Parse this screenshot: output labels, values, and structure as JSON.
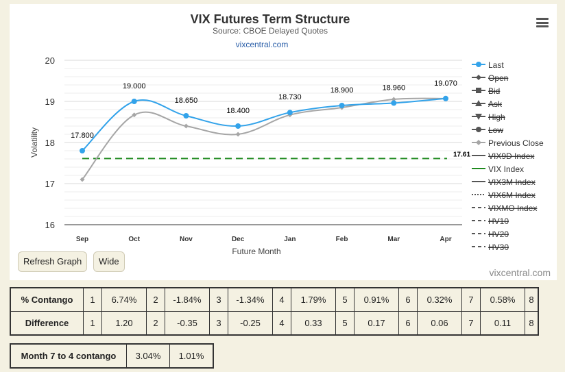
{
  "chart_data": {
    "type": "line",
    "title": "VIX Futures Term Structure",
    "subtitle": "Source: CBOE Delayed Quotes",
    "source_link": "vixcentral.com",
    "xlabel": "Future Month",
    "ylabel": "Volatility",
    "categories": [
      "Sep",
      "Oct",
      "Nov",
      "Dec",
      "Jan",
      "Feb",
      "Mar",
      "Apr"
    ],
    "ylim": [
      16,
      20
    ],
    "yticks": [
      "16",
      "17",
      "18",
      "19",
      "20"
    ],
    "grid": true,
    "legend_position": "right",
    "series": [
      {
        "name": "Last",
        "color": "#33a3ea",
        "values": [
          17.8,
          19.0,
          18.65,
          18.4,
          18.73,
          18.9,
          18.96,
          19.07
        ],
        "labels": [
          "17.800",
          "19.000",
          "18.650",
          "18.400",
          "18.730",
          "18.900",
          "18.960",
          "19.070"
        ]
      },
      {
        "name": "Previous Close",
        "color": "#a6a6a6",
        "values": [
          17.1,
          18.67,
          18.4,
          18.2,
          18.67,
          18.85,
          19.05,
          19.07
        ]
      },
      {
        "name": "VIX Index",
        "color": "#1f8a1f",
        "constant": 17.61,
        "label": "17.61"
      }
    ],
    "legend": [
      {
        "label": "Last",
        "marker": "circle",
        "color": "#33a3ea",
        "disabled": false
      },
      {
        "label": "Open",
        "marker": "diamond",
        "color": "#555555",
        "disabled": true
      },
      {
        "label": "Bid",
        "marker": "square",
        "color": "#555555",
        "disabled": true
      },
      {
        "label": "Ask",
        "marker": "triangle",
        "color": "#555555",
        "disabled": true
      },
      {
        "label": "High",
        "marker": "triangle-down",
        "color": "#555555",
        "disabled": true
      },
      {
        "label": "Low",
        "marker": "circle",
        "color": "#555555",
        "disabled": true
      },
      {
        "label": "Previous Close",
        "marker": "diamond",
        "color": "#a6a6a6",
        "disabled": false
      },
      {
        "label": "VIX9D Index",
        "marker": "line",
        "color": "#555555",
        "disabled": true
      },
      {
        "label": "VIX Index",
        "marker": "line",
        "color": "#1f8a1f",
        "disabled": false
      },
      {
        "label": "VIX3M Index",
        "marker": "line",
        "color": "#555555",
        "disabled": true
      },
      {
        "label": "VIX6M Index",
        "marker": "dotted",
        "color": "#555555",
        "disabled": true
      },
      {
        "label": "VIXMO Index",
        "marker": "dash",
        "color": "#555555",
        "disabled": true
      },
      {
        "label": "HV10",
        "marker": "dash",
        "color": "#555555",
        "disabled": true
      },
      {
        "label": "HV20",
        "marker": "dash",
        "color": "#555555",
        "disabled": true
      },
      {
        "label": "HV30",
        "marker": "dash",
        "color": "#555555",
        "disabled": true
      }
    ]
  },
  "controls": {
    "refresh_label": "Refresh Graph",
    "wide_label": "Wide",
    "watermark": "vixcentral.com"
  },
  "contango_table": {
    "rows": [
      {
        "label": "% Contango",
        "cells": [
          {
            "n": "1",
            "v": "6.74%"
          },
          {
            "n": "2",
            "v": "-1.84%"
          },
          {
            "n": "3",
            "v": "-1.34%"
          },
          {
            "n": "4",
            "v": "1.79%"
          },
          {
            "n": "5",
            "v": "0.91%"
          },
          {
            "n": "6",
            "v": "0.32%"
          },
          {
            "n": "7",
            "v": "0.58%"
          }
        ],
        "last": "8"
      },
      {
        "label": "Difference",
        "cells": [
          {
            "n": "1",
            "v": "1.20"
          },
          {
            "n": "2",
            "v": "-0.35"
          },
          {
            "n": "3",
            "v": "-0.25"
          },
          {
            "n": "4",
            "v": "0.33"
          },
          {
            "n": "5",
            "v": "0.17"
          },
          {
            "n": "6",
            "v": "0.06"
          },
          {
            "n": "7",
            "v": "0.11"
          }
        ],
        "last": "8"
      }
    ]
  },
  "month_table": {
    "label": "Month 7 to 4 contango",
    "values": [
      "3.04%",
      "1.01%"
    ]
  }
}
